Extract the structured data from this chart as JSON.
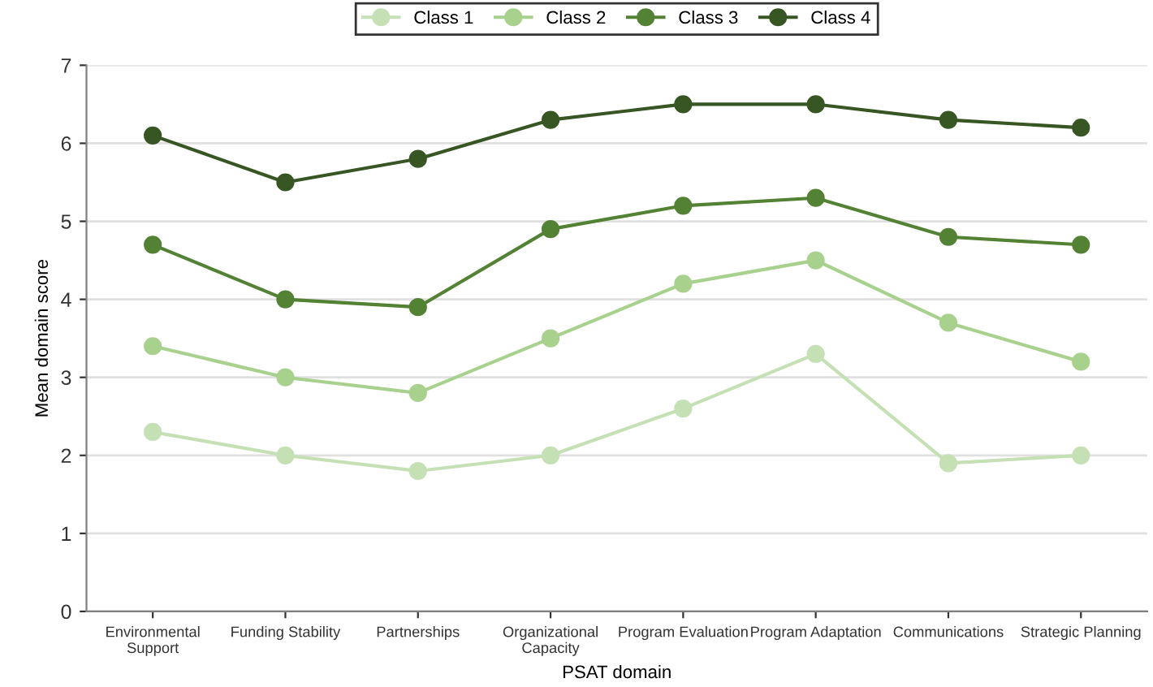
{
  "chart_data": {
    "type": "line",
    "xlabel": "PSAT domain",
    "ylabel": "Mean domain score",
    "categories": [
      "Environmental\nSupport",
      "Funding Stability",
      "Partnerships",
      "Organizational\nCapacity",
      "Program Evaluation",
      "Program Adaptation",
      "Communications",
      "Strategic Planning"
    ],
    "series": [
      {
        "name": "Class 1",
        "color": "#c5e0b4",
        "values": [
          2.3,
          2.0,
          1.8,
          2.0,
          2.6,
          3.3,
          1.9,
          2.0
        ]
      },
      {
        "name": "Class 2",
        "color": "#a9d18e",
        "values": [
          3.4,
          3.0,
          2.8,
          3.5,
          4.2,
          4.5,
          3.7,
          3.2
        ]
      },
      {
        "name": "Class 3",
        "color": "#548235",
        "values": [
          4.7,
          4.0,
          3.9,
          4.9,
          5.2,
          5.3,
          4.8,
          4.7
        ]
      },
      {
        "name": "Class 4",
        "color": "#375623",
        "values": [
          6.1,
          5.5,
          5.8,
          6.3,
          6.5,
          6.5,
          6.3,
          6.2
        ]
      }
    ],
    "ylim": [
      0,
      7
    ],
    "yticks": [
      0,
      1,
      2,
      3,
      4,
      5,
      6,
      7
    ],
    "grid": "y",
    "legend": "top",
    "marker": "circle",
    "line_style": "solid"
  }
}
